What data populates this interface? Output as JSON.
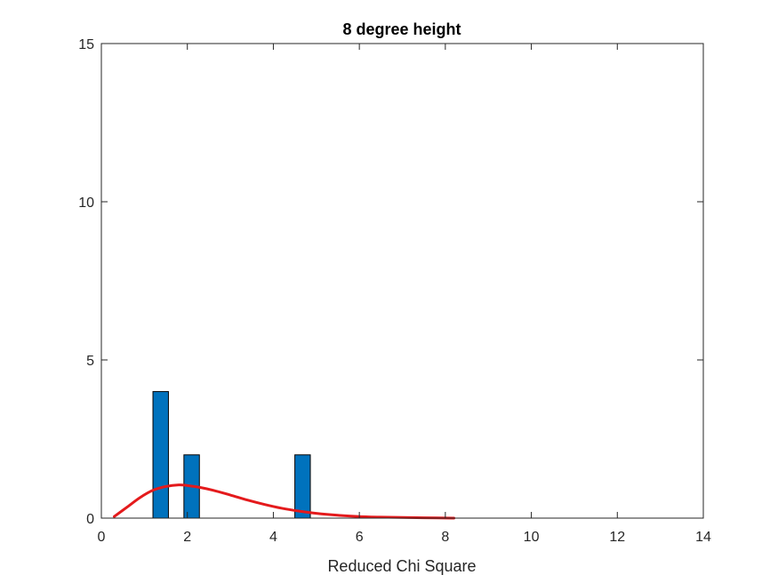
{
  "chart_data": {
    "type": "bar",
    "title": "8 degree height",
    "xlabel": "Reduced Chi Square",
    "ylabel": "",
    "xlim": [
      0,
      14
    ],
    "ylim": [
      0,
      15
    ],
    "xticks": [
      "0",
      "2",
      "4",
      "6",
      "8",
      "10",
      "12",
      "14"
    ],
    "yticks": [
      "0",
      "5",
      "10",
      "15"
    ],
    "grid": false,
    "legend": "none",
    "bar_width": 0.36,
    "bar_color": "#0072BD",
    "bar_edge_color": "#000000",
    "series": [
      {
        "type": "bar",
        "x": [
          1.38,
          2.1,
          4.68
        ],
        "values": [
          4,
          2,
          2
        ]
      },
      {
        "type": "line",
        "color": "#E41A1C",
        "x": [
          0.3,
          0.6,
          0.9,
          1.2,
          1.5,
          1.8,
          2.0,
          2.3,
          2.6,
          3.0,
          3.4,
          3.8,
          4.2,
          4.6,
          5.0,
          5.5,
          6.0,
          6.5,
          7.0,
          7.5,
          8.2
        ],
        "values": [
          0.05,
          0.35,
          0.65,
          0.88,
          1.0,
          1.05,
          1.03,
          0.97,
          0.88,
          0.73,
          0.57,
          0.43,
          0.31,
          0.22,
          0.15,
          0.09,
          0.05,
          0.03,
          0.02,
          0.01,
          0.0
        ]
      }
    ]
  }
}
